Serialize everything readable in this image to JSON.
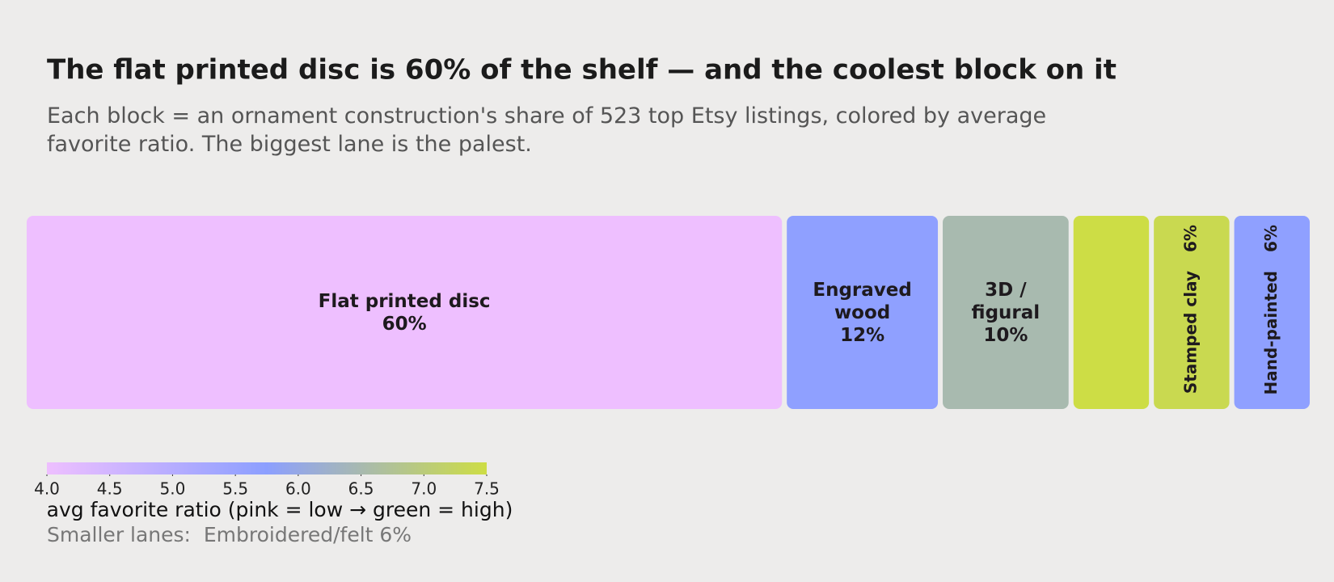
{
  "chart_data": {
    "type": "treemap",
    "title": "The flat printed disc is 60% of the shelf — and the coolest block on it",
    "subtitle": "Each block = an ornament construction's share of 523 top Etsy listings, colored by average favorite ratio. The biggest lane is the palest.",
    "categories": [
      "Flat printed disc",
      "Engraved wood",
      "3D / figural",
      null,
      "Stamped clay",
      "Hand-painted"
    ],
    "values": [
      60,
      12,
      10,
      6,
      6,
      6
    ],
    "value_labels": [
      "60%",
      "12%",
      "10%",
      null,
      "6%",
      "6%"
    ],
    "color_values": [
      4.0,
      5.7,
      6.5,
      7.5,
      7.4,
      5.7
    ],
    "colormap": [
      "#eebfff",
      "#8c9fff",
      "#cddd45"
    ],
    "clim": [
      4.0,
      7.5
    ],
    "cticks": [
      {
        "value": 4.0,
        "label": "4.0"
      },
      {
        "value": 4.5,
        "label": "4.5"
      },
      {
        "value": 5.0,
        "label": "5.0"
      },
      {
        "value": 5.5,
        "label": "5.5"
      },
      {
        "value": 6.0,
        "label": "6.0"
      },
      {
        "value": 6.5,
        "label": "6.5"
      },
      {
        "value": 7.0,
        "label": "7.0"
      },
      {
        "value": 7.5,
        "label": "7.5"
      }
    ],
    "colorbar_label": "avg favorite ratio  (pink = low → green = high)",
    "footnote": "Smaller lanes:  Embroidered/felt 6%"
  }
}
